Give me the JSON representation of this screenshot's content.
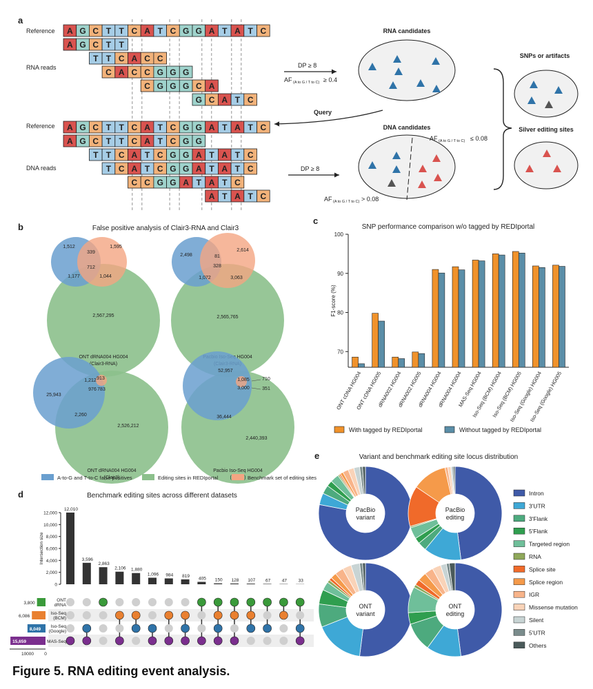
{
  "caption": "Figure 5. RNA editing event analysis.",
  "colors": {
    "A": "#d9534f",
    "G": "#9fd3cc",
    "C": "#f2b27a",
    "T": "#a6cde6",
    "blue": "#6a9fcf",
    "orange": "#f4a582",
    "green": "#8cc08c",
    "barOrange": "#f0922b",
    "barBlue": "#5a8ea8",
    "dark": "#333333",
    "purple": "#7b2f8e",
    "upGreen": "#3a9a3a",
    "upOrange": "#e98030",
    "upBlue": "#2f73a8"
  },
  "panel_a": {
    "letter": "a",
    "reference_label": "Reference",
    "rna_reads_label": "RNA reads",
    "dna_reads_label": "DNA reads",
    "reference_seq": "AGCTTCATCGGATATC",
    "rna_reads": [
      {
        "offset": 0,
        "seq": "AGCTT"
      },
      {
        "offset": 2,
        "seq": "TTCACC"
      },
      {
        "offset": 3,
        "seq": "CACCGGG"
      },
      {
        "offset": 6,
        "seq": "CGGGCA"
      },
      {
        "offset": 10,
        "seq": "GCATC"
      }
    ],
    "dna_reads": [
      {
        "offset": 0,
        "seq": "AGCTTCATCGG"
      },
      {
        "offset": 2,
        "seq": "TTCATCGGATATC"
      },
      {
        "offset": 3,
        "seq": "TCATCGGATATC"
      },
      {
        "offset": 5,
        "seq": "CCGGATATC"
      },
      {
        "offset": 11,
        "seq": "ATATC"
      }
    ],
    "rna_candidates_title": "RNA candidates",
    "dna_candidates_title": "DNA candidates",
    "snps_title": "SNPs or artifacts",
    "silver_title": "Silver editing sites",
    "query_label": "Query",
    "dp_rna": "DP ≥ 8",
    "af_rna": "AF",
    "af_rna_sub": "(A to G / T to C)",
    "af_rna_val": "≥ 0.4",
    "dp_dna": "DP ≥ 8",
    "af_dna_top": "AF",
    "af_dna_top_sub": "(A to G / T to C)",
    "af_dna_top_val": "≤ 0.08",
    "af_dna_bot": "AF",
    "af_dna_bot_sub": "(A to G / T to C)",
    "af_dna_bot_val": "> 0.08"
  },
  "panel_b": {
    "letter": "b",
    "title": "False positive analysis of Clair3-RNA and Clair3",
    "venns": [
      {
        "labels": [
          "1,512",
          "1,595",
          "339",
          "712",
          "1,177",
          "1,044",
          "2,567,295"
        ],
        "caption": [
          "ONT dRNA004 HG004",
          "(Clair3-RNA)"
        ]
      },
      {
        "labels": [
          "2,498",
          "2,614",
          "81",
          "328",
          "1,072",
          "3,063",
          "2,565,765"
        ],
        "caption": [
          "Pacbio Iso-Seq HG004",
          "(Clair3-RNA)"
        ]
      },
      {
        "labels": [
          "25,943",
          "1,212",
          "913",
          "976",
          "783",
          "2,260",
          "2,526,212"
        ],
        "caption": [
          "ONT dRNA004 HG004",
          "(Clair3)"
        ]
      },
      {
        "labels": [
          "52,957",
          "1,085",
          "710",
          "3,000",
          "351",
          "36,444",
          "2,440,393"
        ],
        "caption": [
          "Pacbio Iso-Seq HG004",
          "(Clair3)"
        ]
      }
    ],
    "legend": [
      "A-to-G and T-to-C false positives",
      "Editing sites in REDIportal",
      "Benchmark set of editing sites"
    ]
  },
  "chart_data": [
    {
      "type": "bar",
      "id": "c",
      "title": "SNP performance comparison w/o tagged by REDIportal",
      "ylabel": "F1-score (%)",
      "ylim": [
        66,
        100
      ],
      "yticks": [
        70,
        80,
        90,
        100
      ],
      "categories": [
        "ONT cDNA HG004",
        "ONT cDNA HG005",
        "dRNA002 HG004",
        "dRNA002 HG005",
        "dRNA004 HG004",
        "dRNA004 HG004",
        "MAS-Seq HG004",
        "Iso-Seq (BCM) HG004",
        "Iso-Seq (BCM) HG005",
        "Iso-Seq (Google) HG004",
        "Iso-Seq (Google) HG005"
      ],
      "series": [
        {
          "name": "With tagged by REDIportal",
          "values": [
            68.6,
            79.8,
            68.6,
            69.9,
            91.0,
            91.7,
            93.4,
            95.0,
            95.6,
            91.9,
            92.1
          ]
        },
        {
          "name": "Without tagged by REDIportal",
          "values": [
            66.9,
            77.8,
            68.2,
            69.5,
            90.1,
            90.9,
            93.2,
            94.7,
            95.2,
            91.5,
            91.8
          ]
        }
      ]
    },
    {
      "type": "bar",
      "id": "d",
      "title": "Benchmark editing sites across different datasets",
      "ylabel": "Intersection size",
      "ylim": [
        0,
        12000
      ],
      "yticks": [
        0,
        2000,
        4000,
        6000,
        8000,
        10000,
        12000
      ],
      "ytick_labels": [
        "0",
        "2,000",
        "4,000",
        "6,000",
        "8,000",
        "10,000",
        "12,000"
      ],
      "values": [
        12010,
        3596,
        2863,
        2106,
        1880,
        1096,
        984,
        819,
        405,
        150,
        128,
        107,
        67,
        47,
        33
      ],
      "value_labels": [
        "12,010",
        "3,596",
        "2,863",
        "2,106",
        "1,880",
        "1,096",
        "984",
        "819",
        "405",
        "150",
        "128",
        "107",
        "67",
        "47",
        "33"
      ],
      "sets": [
        {
          "name": "ONT\ndRNA",
          "size_label": "3,800",
          "size": 3800
        },
        {
          "name": "Iso-Seq\n(BCM)",
          "size_label": "6,086",
          "size": 6086
        },
        {
          "name": "Iso-Seq\n(Google)",
          "size_label": "8,049",
          "size": 8049
        },
        {
          "name": "MAS-Seq",
          "size_label": "15,659",
          "size": 15659
        }
      ],
      "set_axis_labels": [
        "10000",
        "0"
      ],
      "membership": [
        [
          0,
          0,
          0,
          1
        ],
        [
          0,
          0,
          1,
          1
        ],
        [
          1,
          0,
          0,
          0
        ],
        [
          0,
          1,
          0,
          1
        ],
        [
          0,
          1,
          1,
          0
        ],
        [
          0,
          0,
          1,
          1
        ],
        [
          0,
          1,
          0,
          1
        ],
        [
          0,
          1,
          1,
          1
        ],
        [
          1,
          0,
          0,
          1
        ],
        [
          1,
          1,
          1,
          1
        ],
        [
          1,
          1,
          0,
          1
        ],
        [
          1,
          1,
          1,
          0
        ],
        [
          1,
          0,
          1,
          0
        ],
        [
          1,
          1,
          0,
          0
        ],
        [
          1,
          0,
          1,
          1
        ]
      ]
    },
    {
      "type": "pie",
      "id": "e",
      "title": "Variant and benchmark editing site locus distribution",
      "legend": [
        "Intron",
        "3'UTR",
        "3'Flank",
        "5'Flank",
        "Targeted region",
        "RNA",
        "Splice site",
        "Splice region",
        "IGR",
        "Missense mutation",
        "Silent",
        "5'UTR",
        "Others"
      ],
      "legend_colors": [
        "#3f5aa8",
        "#3ea8d6",
        "#4daa7e",
        "#2f9e4f",
        "#6fbf9a",
        "#8fa85a",
        "#f06a2a",
        "#f59a4a",
        "#f8b48a",
        "#f9d3b8",
        "#c8d4d4",
        "#7a8c8c",
        "#4a5a5a"
      ],
      "donuts": [
        {
          "label": "PacBio\nvariant",
          "values": [
            78,
            4,
            3,
            2,
            3,
            0.5,
            0.5,
            1,
            2,
            2,
            2,
            1,
            1
          ]
        },
        {
          "label": "PacBio\nediting",
          "values": [
            48,
            13,
            3,
            2,
            4,
            0.5,
            14,
            12,
            1,
            1,
            0.5,
            0.5,
            0.5
          ]
        },
        {
          "label": "ONT\nvariant",
          "values": [
            52,
            17,
            8,
            5,
            3,
            1,
            1,
            2,
            3,
            3,
            3,
            1,
            1
          ]
        },
        {
          "label": "ONT\nediting",
          "values": [
            48,
            12,
            10,
            4,
            9,
            1,
            2,
            3,
            3,
            3,
            2,
            1,
            2
          ]
        }
      ]
    }
  ],
  "panel_letters": {
    "c": "c",
    "d": "d",
    "e": "e"
  },
  "legend_c": [
    "With tagged by REDIportal",
    "Without tagged by REDIportal"
  ]
}
